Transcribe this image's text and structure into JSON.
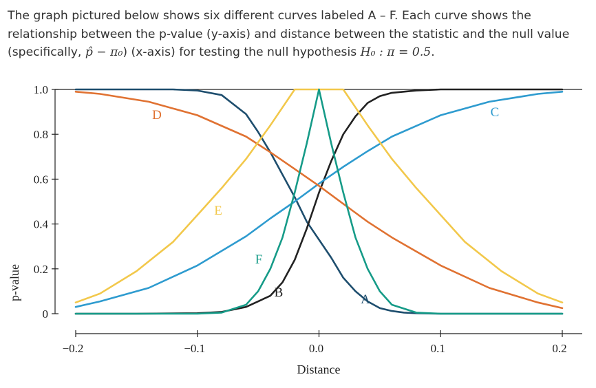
{
  "intro": {
    "text_before": "The graph pictured below shows six different curves labeled A – F.  Each curve shows the relationship between the p-value (y-axis) and distance between the statistic and the null value (specifically, ",
    "diff_expr": "p̂ − π₀",
    "text_middle": ") (x-axis) for testing the null hypothesis ",
    "hypothesis_expr": "H₀ : π = 0.5",
    "text_after": "."
  },
  "chart_data": {
    "type": "line",
    "xlabel": "Distance",
    "ylabel": "p-value",
    "xlim": [
      -0.2,
      0.2
    ],
    "ylim": [
      0,
      1.0
    ],
    "x_ticks": [
      -0.2,
      -0.1,
      0.0,
      0.1,
      0.2
    ],
    "x_tick_labels": [
      "−0.2",
      "−0.1",
      "0.0",
      "0.1",
      "0.2"
    ],
    "y_ticks": [
      0,
      0.2,
      0.4,
      0.6,
      0.8,
      1.0
    ],
    "y_tick_labels": [
      "0",
      "0.2",
      "0.4",
      "0.6",
      "0.8",
      "1.0"
    ],
    "grid": false,
    "legend": "none (curves labeled directly)",
    "series": [
      {
        "name": "A",
        "label_color": "#1e4e6e",
        "color": "#1e4e6e",
        "x": [
          -0.2,
          -0.15,
          -0.12,
          -0.1,
          -0.08,
          -0.06,
          -0.05,
          -0.04,
          -0.03,
          -0.02,
          -0.01,
          0,
          0.01,
          0.02,
          0.03,
          0.04,
          0.05,
          0.06,
          0.07,
          0.08,
          0.09,
          0.1,
          0.15,
          0.2
        ],
        "y": [
          1.0,
          1.0,
          1.0,
          0.995,
          0.975,
          0.89,
          0.81,
          0.72,
          0.62,
          0.52,
          0.41,
          0.33,
          0.25,
          0.16,
          0.1,
          0.055,
          0.025,
          0.012,
          0.005,
          0.002,
          0.001,
          0.0,
          0.0,
          0.0
        ]
      },
      {
        "name": "B",
        "label_color": "#222222",
        "color": "#222222",
        "x": [
          -0.2,
          -0.15,
          -0.1,
          -0.08,
          -0.06,
          -0.04,
          -0.03,
          -0.02,
          -0.01,
          0,
          0.01,
          0.02,
          0.03,
          0.04,
          0.05,
          0.06,
          0.08,
          0.1,
          0.15,
          0.2
        ],
        "y": [
          0.0,
          0.0,
          0.002,
          0.008,
          0.03,
          0.08,
          0.14,
          0.24,
          0.38,
          0.54,
          0.68,
          0.8,
          0.88,
          0.94,
          0.97,
          0.985,
          0.995,
          1.0,
          1.0,
          1.0
        ]
      },
      {
        "name": "C",
        "label_color": "#2e9bcf",
        "color": "#2e9bcf",
        "x": [
          -0.2,
          -0.18,
          -0.14,
          -0.1,
          -0.06,
          -0.04,
          -0.02,
          0,
          0.02,
          0.04,
          0.06,
          0.1,
          0.14,
          0.18,
          0.2
        ],
        "y": [
          0.03,
          0.055,
          0.115,
          0.215,
          0.345,
          0.425,
          0.5,
          0.58,
          0.655,
          0.725,
          0.79,
          0.885,
          0.945,
          0.98,
          0.99
        ]
      },
      {
        "name": "D",
        "label_color": "#e07232",
        "color": "#e07232",
        "x": [
          -0.2,
          -0.18,
          -0.14,
          -0.1,
          -0.06,
          -0.04,
          -0.02,
          0,
          0.02,
          0.04,
          0.06,
          0.1,
          0.14,
          0.18,
          0.2
        ],
        "y": [
          0.99,
          0.98,
          0.945,
          0.885,
          0.79,
          0.72,
          0.645,
          0.57,
          0.49,
          0.41,
          0.34,
          0.215,
          0.115,
          0.05,
          0.025
        ]
      },
      {
        "name": "E",
        "label_color": "#f2c84b",
        "color": "#f2c84b",
        "x": [
          -0.2,
          -0.18,
          -0.15,
          -0.12,
          -0.1,
          -0.08,
          -0.06,
          -0.04,
          -0.02,
          -0.01,
          0,
          0.01,
          0.02,
          0.04,
          0.06,
          0.08,
          0.1,
          0.12,
          0.15,
          0.18,
          0.2
        ],
        "y": [
          0.05,
          0.09,
          0.19,
          0.32,
          0.44,
          0.56,
          0.69,
          0.84,
          1.0,
          1.0,
          1.0,
          1.0,
          1.0,
          0.84,
          0.69,
          0.56,
          0.44,
          0.32,
          0.19,
          0.09,
          0.05
        ]
      },
      {
        "name": "F",
        "label_color": "#169b88",
        "color": "#169b88",
        "x": [
          -0.2,
          -0.1,
          -0.08,
          -0.06,
          -0.05,
          -0.04,
          -0.03,
          -0.02,
          -0.01,
          0,
          0.01,
          0.02,
          0.03,
          0.04,
          0.05,
          0.06,
          0.08,
          0.1,
          0.2
        ],
        "y": [
          0.0,
          0.0,
          0.005,
          0.04,
          0.1,
          0.2,
          0.34,
          0.54,
          0.76,
          1.0,
          0.76,
          0.54,
          0.34,
          0.2,
          0.1,
          0.04,
          0.005,
          0.0,
          0.0
        ]
      }
    ]
  }
}
